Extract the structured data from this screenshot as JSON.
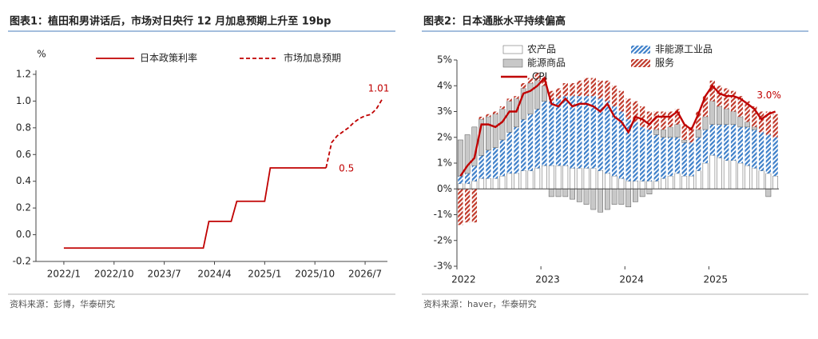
{
  "chart_data": [
    {
      "type": "line",
      "title": "图表1：植田和男讲话后，市场对日央行 12 月加息预期上升至 19bp",
      "y_label": "%",
      "source": "资料来源：彭博，华泰研究",
      "xlim": [
        "2021/8",
        "2026/11"
      ],
      "xticks": [
        "2022/1",
        "2022/10",
        "2023/7",
        "2024/4",
        "2025/1",
        "2025/10",
        "2026/7"
      ],
      "ylim": [
        -0.2,
        1.2
      ],
      "yticks": [
        -0.2,
        {
          "value": 0,
          "label": "0.0"
        },
        0.2,
        0.4,
        0.6,
        0.8,
        {
          "value": 1,
          "label": "1.0"
        },
        1.2
      ],
      "series": [
        {
          "name": "日本政策利率",
          "color": "#c00000",
          "dashed": false,
          "x": [
            "2022/1",
            "2024/2",
            "2024/3",
            "2024/7",
            "2024/8",
            "2025/1",
            "2025/2",
            "2025/12"
          ],
          "values": [
            -0.1,
            -0.1,
            0.1,
            0.1,
            0.25,
            0.25,
            0.5,
            0.5
          ],
          "value_labels": [
            null,
            null,
            null,
            null,
            null,
            null,
            null,
            "0.5"
          ]
        },
        {
          "name": "市场加息预期",
          "color": "#c00000",
          "dashed": true,
          "x": [
            "2025/12",
            "2026/1",
            "2026/2",
            "2026/3",
            "2026/4",
            "2026/5",
            "2026/6",
            "2026/7",
            "2026/8",
            "2026/9",
            "2026/10"
          ],
          "values": [
            0.5,
            0.69,
            0.74,
            0.77,
            0.8,
            0.84,
            0.87,
            0.89,
            0.9,
            0.94,
            1.01
          ],
          "value_labels": [
            null,
            null,
            null,
            null,
            null,
            null,
            null,
            null,
            null,
            null,
            "1.01"
          ]
        }
      ]
    },
    {
      "type": "bar",
      "title": "图表2：日本通胀水平持续偏高",
      "source": "资料来源：haver，华泰研究",
      "stacked": true,
      "categories": [
        "2022",
        null,
        null,
        null,
        null,
        null,
        null,
        null,
        null,
        null,
        null,
        null,
        "2023",
        null,
        null,
        null,
        null,
        null,
        null,
        null,
        null,
        null,
        null,
        null,
        "2024",
        null,
        null,
        null,
        null,
        null,
        null,
        null,
        null,
        null,
        null,
        null,
        "2025",
        null,
        null,
        null,
        null,
        null,
        null,
        null,
        null,
        null
      ],
      "ylim": [
        -3,
        5
      ],
      "yticks": [
        {
          "value": -3,
          "label": "-3%"
        },
        {
          "value": -2,
          "label": "-2%"
        },
        {
          "value": -1,
          "label": "-1%"
        },
        {
          "value": 0,
          "label": "0%"
        },
        {
          "value": 1,
          "label": "1%"
        },
        {
          "value": 2,
          "label": "2%"
        },
        {
          "value": 3,
          "label": "3%"
        },
        {
          "value": 4,
          "label": "4%"
        },
        {
          "value": 5,
          "label": "5%"
        }
      ],
      "series": [
        {
          "name": "农产品",
          "type": "bar",
          "color": "#ffffff",
          "hatch": false,
          "values": [
            0.2,
            0.2,
            0.3,
            0.4,
            0.4,
            0.4,
            0.5,
            0.6,
            0.6,
            0.7,
            0.7,
            0.8,
            0.9,
            0.9,
            0.9,
            0.9,
            0.8,
            0.8,
            0.8,
            0.8,
            0.7,
            0.6,
            0.5,
            0.4,
            0.3,
            0.3,
            0.3,
            0.3,
            0.3,
            0.4,
            0.5,
            0.6,
            0.5,
            0.5,
            0.7,
            1.0,
            1.3,
            1.2,
            1.1,
            1.1,
            1.0,
            0.9,
            0.8,
            0.7,
            0.6,
            0.5
          ]
        },
        {
          "name": "非能源工业品",
          "type": "bar",
          "color": "#3d7fc9",
          "hatch": true,
          "values": [
            0.3,
            0.4,
            0.6,
            0.9,
            1.1,
            1.2,
            1.4,
            1.6,
            1.8,
            2.0,
            2.2,
            2.3,
            2.5,
            2.5,
            2.6,
            2.7,
            2.8,
            2.8,
            2.8,
            2.8,
            2.8,
            2.8,
            2.7,
            2.6,
            2.4,
            2.3,
            2.1,
            2.0,
            1.8,
            1.6,
            1.5,
            1.4,
            1.3,
            1.3,
            1.3,
            1.3,
            1.2,
            1.3,
            1.4,
            1.4,
            1.4,
            1.5,
            1.5,
            1.5,
            1.5,
            1.5
          ]
        },
        {
          "name": "能源商品",
          "type": "bar",
          "color": "#c8c8c8",
          "hatch": false,
          "values": [
            1.4,
            1.5,
            1.5,
            1.4,
            1.3,
            1.3,
            1.2,
            1.2,
            1.1,
            1.2,
            1.2,
            1.1,
            0.6,
            -0.3,
            -0.3,
            -0.3,
            -0.4,
            -0.5,
            -0.6,
            -0.8,
            -0.9,
            -0.8,
            -0.6,
            -0.6,
            -0.7,
            -0.5,
            -0.3,
            -0.2,
            0.2,
            0.3,
            0.4,
            0.5,
            0.1,
            0,
            0.3,
            0.5,
            0.9,
            0.7,
            0.6,
            0.5,
            0.4,
            0.2,
            0.1,
            0,
            -0.3,
            0
          ]
        },
        {
          "name": "服务",
          "type": "bar",
          "color": "#c0392b",
          "hatch": true,
          "values": [
            -1.4,
            -1.3,
            -1.3,
            0.1,
            0.1,
            0.1,
            0.1,
            0.1,
            0.1,
            0.2,
            0.2,
            0.3,
            0.3,
            0.4,
            0.4,
            0.5,
            0.5,
            0.6,
            0.7,
            0.7,
            0.7,
            0.8,
            0.8,
            0.8,
            0.8,
            0.8,
            0.8,
            0.7,
            0.7,
            0.7,
            0.6,
            0.6,
            0.6,
            0.6,
            0.7,
            0.8,
            0.8,
            0.8,
            0.8,
            0.8,
            0.8,
            0.8,
            0.8,
            0.8,
            0.9,
            0.9
          ]
        },
        {
          "name": "CPI",
          "type": "line",
          "color": "#c00000",
          "values": [
            0.5,
            0.9,
            1.2,
            2.5,
            2.5,
            2.4,
            2.6,
            3.0,
            3.0,
            3.7,
            3.8,
            4.0,
            4.3,
            3.3,
            3.2,
            3.5,
            3.2,
            3.3,
            3.3,
            3.2,
            3.0,
            3.3,
            2.8,
            2.6,
            2.2,
            2.8,
            2.7,
            2.5,
            2.8,
            2.8,
            2.8,
            3.0,
            2.5,
            2.3,
            2.9,
            3.6,
            4.0,
            3.7,
            3.6,
            3.6,
            3.5,
            3.3,
            3.1,
            2.7,
            2.9,
            3.0
          ],
          "value_labels": [
            null,
            null,
            null,
            null,
            null,
            null,
            null,
            null,
            null,
            null,
            null,
            null,
            null,
            null,
            null,
            null,
            null,
            null,
            null,
            null,
            null,
            null,
            null,
            null,
            null,
            null,
            null,
            null,
            null,
            null,
            null,
            null,
            null,
            null,
            null,
            null,
            null,
            null,
            null,
            null,
            null,
            null,
            null,
            null,
            null,
            "3.0%"
          ]
        }
      ]
    }
  ]
}
